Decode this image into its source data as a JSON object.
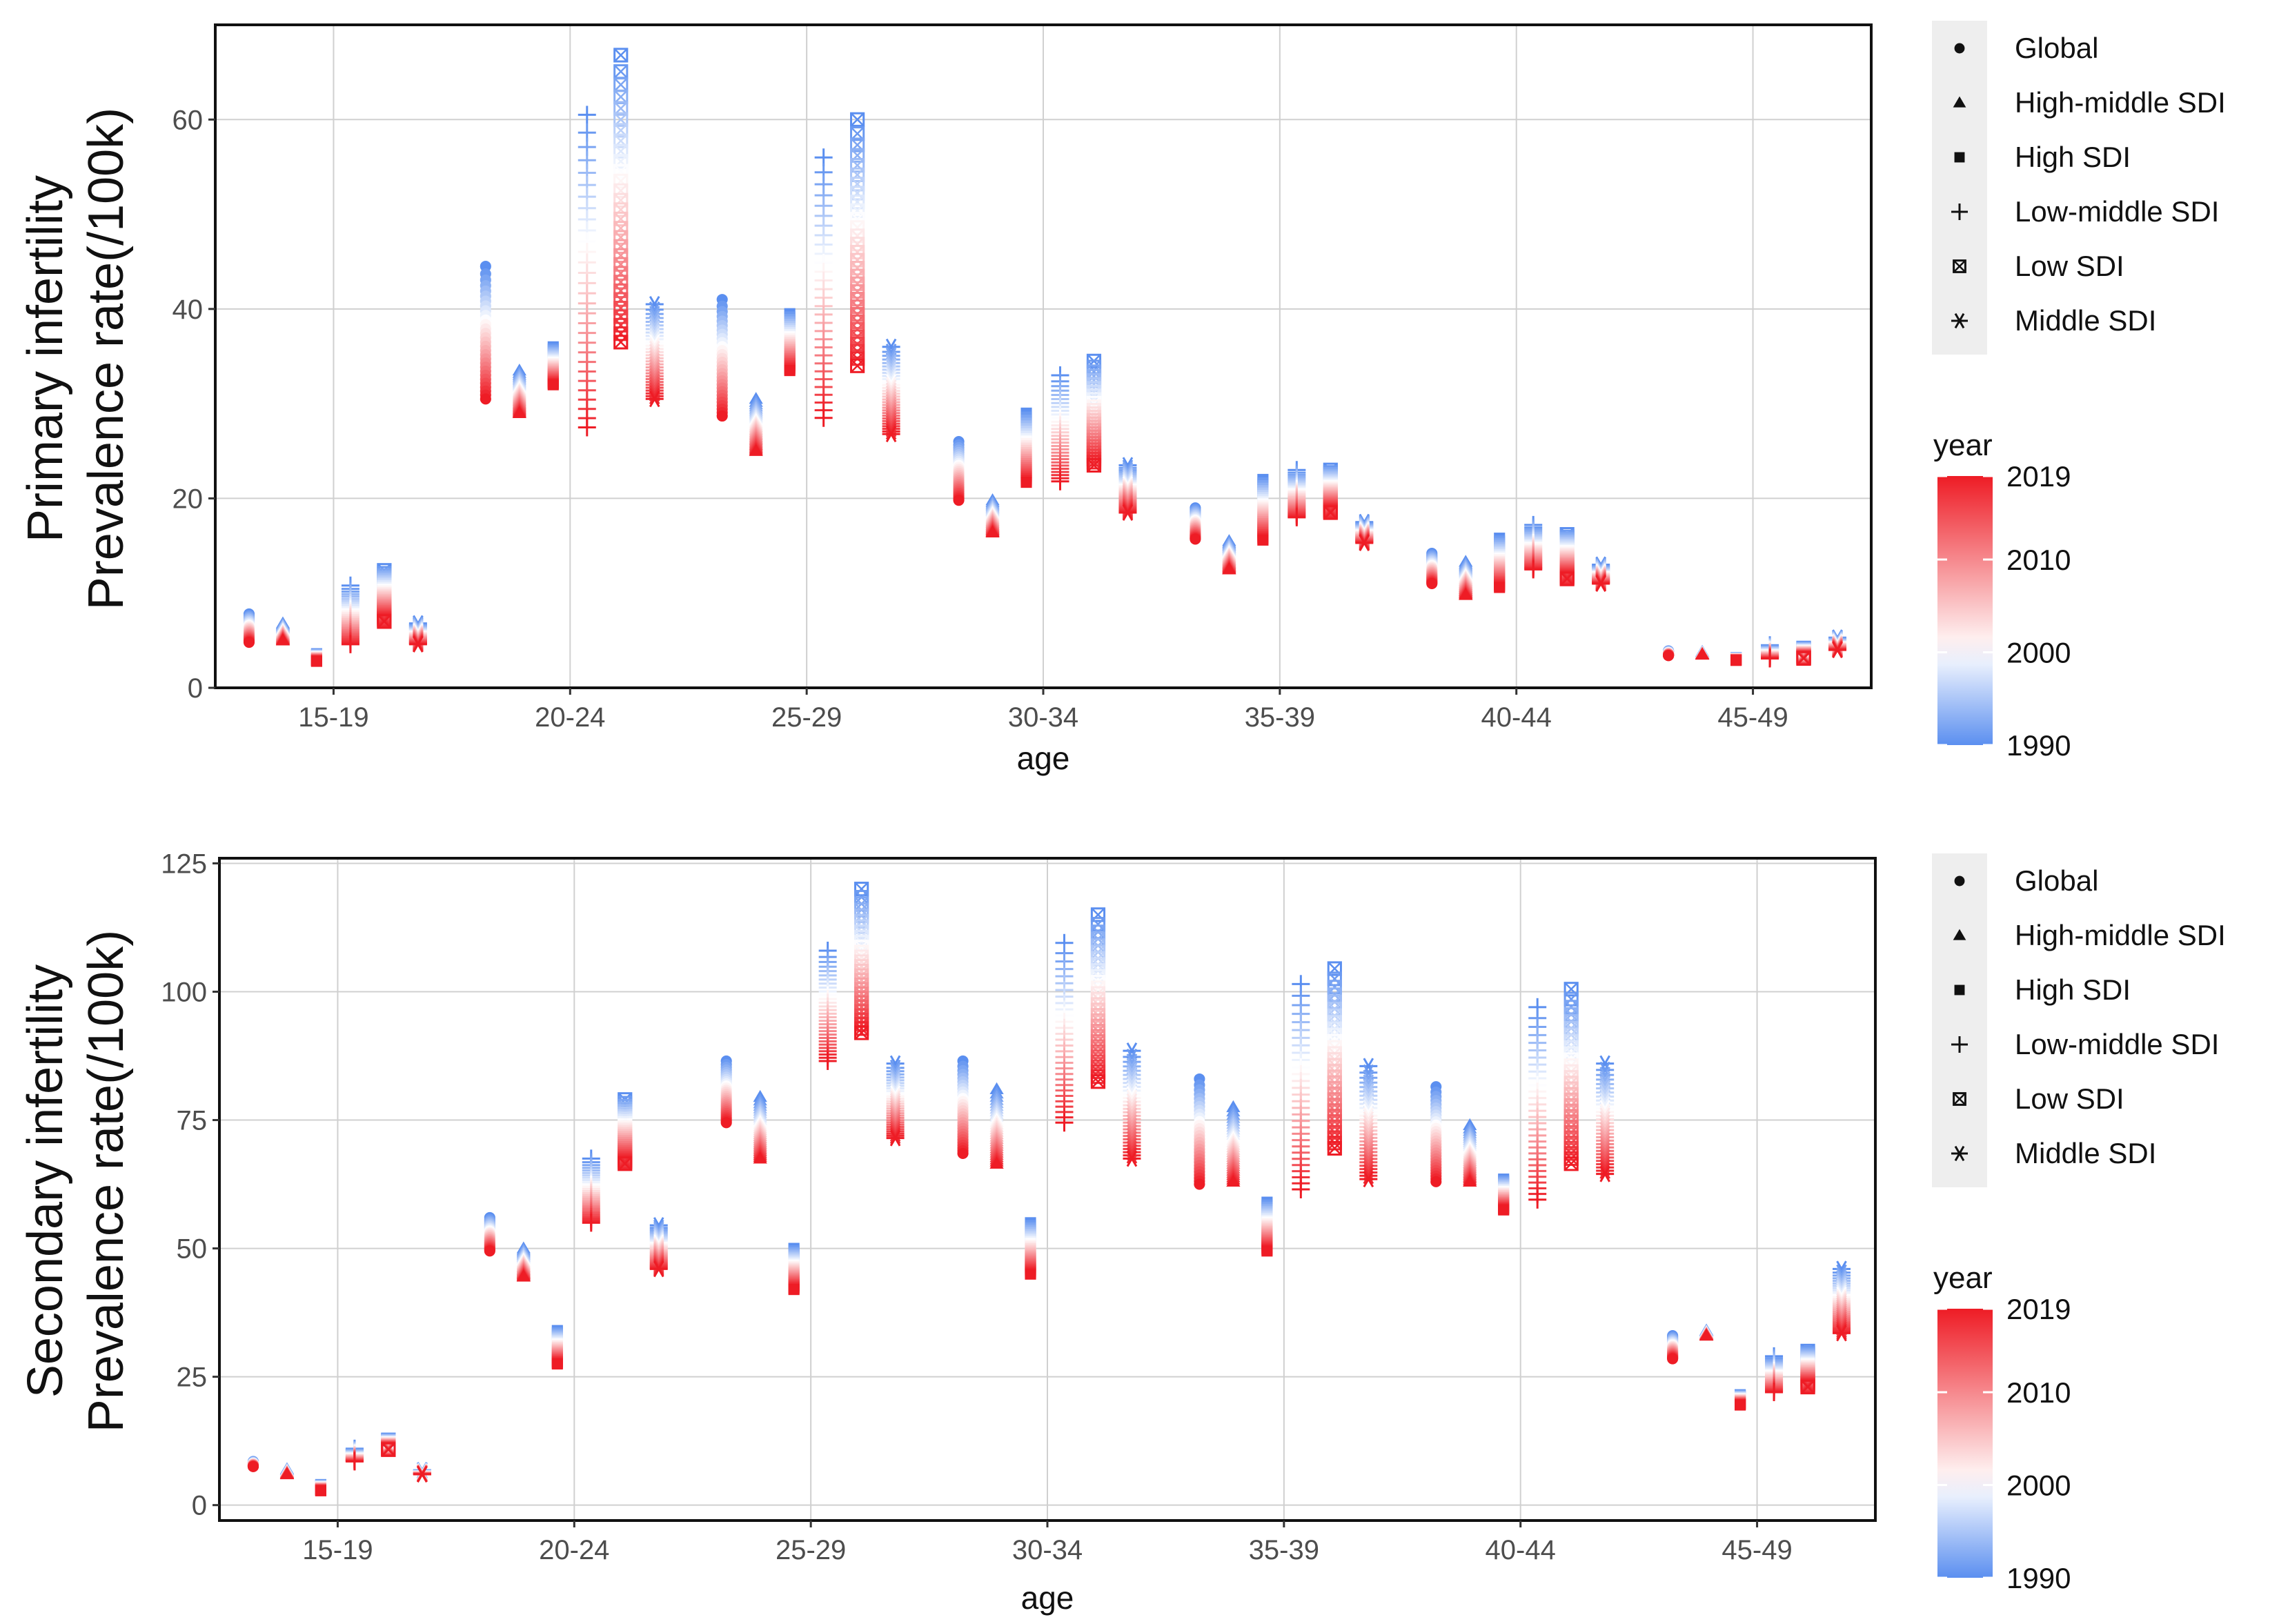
{
  "chart_data": [
    {
      "type": "scatter",
      "title": "",
      "ylabel_lines": [
        "Primary  infertility",
        "Prevalence rate(/100k)"
      ],
      "xlabel": "age",
      "categories": [
        "15-19",
        "20-24",
        "25-29",
        "30-34",
        "35-39",
        "40-44",
        "45-49"
      ],
      "ylim": [
        0,
        70
      ],
      "yticks": [
        0,
        20,
        40,
        60
      ],
      "grid": true,
      "series": [
        {
          "name": "Global",
          "shape": "circle",
          "start_1990": [
            7.8,
            44.5,
            41,
            26,
            19,
            14.2,
            3.9
          ],
          "end_2019": [
            4.8,
            30.5,
            28.7,
            19.8,
            15.7,
            11,
            3.4
          ]
        },
        {
          "name": "High-middle SDI",
          "shape": "triangle",
          "start_1990": [
            6.8,
            33.5,
            30.5,
            19.8,
            15.5,
            13.3,
            3.8
          ],
          "end_2019": [
            5,
            29,
            25,
            16.4,
            12.5,
            9.8,
            3.5
          ]
        },
        {
          "name": "High SDI",
          "shape": "square",
          "start_1990": [
            3.6,
            36,
            39.5,
            29,
            22,
            15.8,
            3.2
          ],
          "end_2019": [
            2.8,
            32,
            33.5,
            21.7,
            15.6,
            10.6,
            2.9
          ]
        },
        {
          "name": "Low-middle SDI",
          "shape": "plus",
          "start_1990": [
            10.8,
            60.5,
            56,
            33,
            23,
            17.2,
            4.5
          ],
          "end_2019": [
            4.6,
            27.5,
            28.5,
            21.8,
            18,
            12.5,
            3.1
          ]
        },
        {
          "name": "Low SDI",
          "shape": "boxx",
          "start_1990": [
            12.4,
            66.8,
            60,
            34.5,
            23,
            16.2,
            4.2
          ],
          "end_2019": [
            7,
            36.5,
            34,
            23.5,
            18.5,
            11.5,
            3.1
          ]
        },
        {
          "name": "Middle SDI",
          "shape": "star",
          "start_1990": [
            6.8,
            40.5,
            36,
            23.5,
            17.5,
            13,
            5.3
          ],
          "end_2019": [
            4.6,
            30.5,
            26.8,
            18.5,
            15.3,
            11,
            4
          ]
        }
      ],
      "legend": {
        "title": "year",
        "colorbar_labels": [
          "2019",
          "2010",
          "2000",
          "1990"
        ],
        "placement": "right"
      },
      "year_range": [
        1990,
        2019
      ],
      "colors": {
        "low": "#5b8ff0",
        "mid": "#ffffff",
        "high": "#ee1c25"
      }
    },
    {
      "type": "scatter",
      "title": "",
      "ylabel_lines": [
        "Secondary infertility",
        "Prevalence rate(/100k)"
      ],
      "xlabel": "age",
      "categories": [
        "15-19",
        "20-24",
        "25-29",
        "30-34",
        "35-39",
        "40-44",
        "45-49"
      ],
      "ylim": [
        -3,
        126
      ],
      "yticks": [
        0,
        25,
        50,
        75,
        100,
        125
      ],
      "grid": true,
      "series": [
        {
          "name": "Global",
          "shape": "circle",
          "start_1990": [
            8.5,
            56,
            86.5,
            86.5,
            83,
            81.5,
            33
          ],
          "end_2019": [
            7.5,
            49.5,
            74.5,
            68.5,
            62.5,
            63,
            28.5
          ]
        },
        {
          "name": "High-middle SDI",
          "shape": "triangle",
          "start_1990": [
            7,
            50,
            79.5,
            81,
            77.5,
            74,
            34
          ],
          "end_2019": [
            6,
            44.5,
            67.5,
            66.5,
            63,
            63,
            33
          ]
        },
        {
          "name": "High SDI",
          "shape": "square",
          "start_1990": [
            4,
            34,
            50,
            55,
            59,
            63.5,
            21.5
          ],
          "end_2019": [
            2.8,
            27.5,
            42,
            45,
            49.5,
            57.5,
            19.5
          ]
        },
        {
          "name": "Low-middle SDI",
          "shape": "plus",
          "start_1990": [
            11,
            67.5,
            108,
            109.5,
            101.5,
            97,
            29
          ],
          "end_2019": [
            8.5,
            55,
            86.5,
            74.5,
            61.5,
            59.5,
            22
          ]
        },
        {
          "name": "Low SDI",
          "shape": "boxx",
          "start_1990": [
            12.7,
            79,
            120,
            115,
            104.5,
            100.5,
            30
          ],
          "end_2019": [
            10.8,
            66.5,
            92,
            82.5,
            69.5,
            66.5,
            23
          ]
        },
        {
          "name": "Middle SDI",
          "shape": "star",
          "start_1990": [
            6.8,
            54.5,
            86,
            88.5,
            85.5,
            86,
            46
          ],
          "end_2019": [
            6,
            46,
            71.5,
            67.5,
            63.5,
            64.5,
            33.5
          ]
        }
      ],
      "legend": {
        "title": "year",
        "colorbar_labels": [
          "2019",
          "2010",
          "2000",
          "1990"
        ],
        "placement": "right"
      },
      "year_range": [
        1990,
        2019
      ],
      "colors": {
        "low": "#5b8ff0",
        "mid": "#ffffff",
        "high": "#ee1c25"
      }
    }
  ]
}
